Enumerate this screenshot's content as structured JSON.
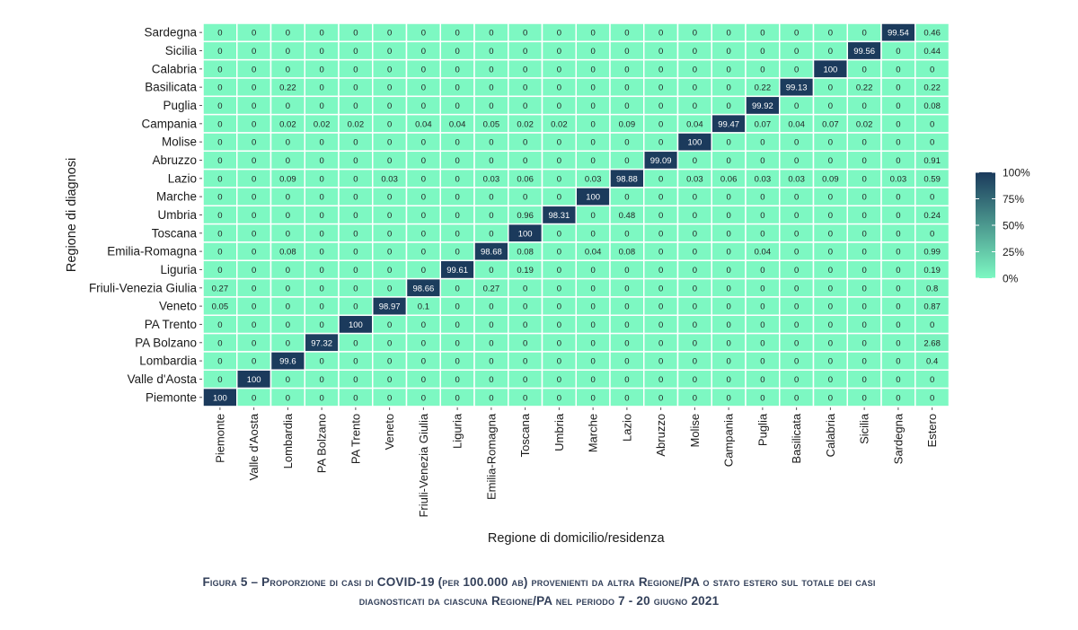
{
  "chart_data": {
    "type": "heatmap",
    "title": "",
    "xlabel": "Regione di domicilio/residenza",
    "ylabel": "Regione di diagnosi",
    "x_categories": [
      "Piemonte",
      "Valle d'Aosta",
      "Lombardia",
      "PA Bolzano",
      "PA Trento",
      "Veneto",
      "Friuli-Venezia Giulia",
      "Liguria",
      "Emilia-Romagna",
      "Toscana",
      "Umbria",
      "Marche",
      "Lazio",
      "Abruzzo",
      "Molise",
      "Campania",
      "Puglia",
      "Basilicata",
      "Calabria",
      "Sicilia",
      "Sardegna",
      "Estero"
    ],
    "y_categories": [
      "Sardegna",
      "Sicilia",
      "Calabria",
      "Basilicata",
      "Puglia",
      "Campania",
      "Molise",
      "Abruzzo",
      "Lazio",
      "Marche",
      "Umbria",
      "Toscana",
      "Emilia-Romagna",
      "Liguria",
      "Friuli-Venezia Giulia",
      "Veneto",
      "PA Trento",
      "PA Bolzano",
      "Lombardia",
      "Valle d'Aosta",
      "Piemonte"
    ],
    "values": [
      [
        "0",
        "0",
        "0",
        "0",
        "0",
        "0",
        "0",
        "0",
        "0",
        "0",
        "0",
        "0",
        "0",
        "0",
        "0",
        "0",
        "0",
        "0",
        "0",
        "0",
        "99.54",
        "0.46"
      ],
      [
        "0",
        "0",
        "0",
        "0",
        "0",
        "0",
        "0",
        "0",
        "0",
        "0",
        "0",
        "0",
        "0",
        "0",
        "0",
        "0",
        "0",
        "0",
        "0",
        "99.56",
        "0",
        "0.44"
      ],
      [
        "0",
        "0",
        "0",
        "0",
        "0",
        "0",
        "0",
        "0",
        "0",
        "0",
        "0",
        "0",
        "0",
        "0",
        "0",
        "0",
        "0",
        "0",
        "100",
        "0",
        "0",
        "0"
      ],
      [
        "0",
        "0",
        "0.22",
        "0",
        "0",
        "0",
        "0",
        "0",
        "0",
        "0",
        "0",
        "0",
        "0",
        "0",
        "0",
        "0",
        "0.22",
        "99.13",
        "0",
        "0.22",
        "0",
        "0.22"
      ],
      [
        "0",
        "0",
        "0",
        "0",
        "0",
        "0",
        "0",
        "0",
        "0",
        "0",
        "0",
        "0",
        "0",
        "0",
        "0",
        "0",
        "99.92",
        "0",
        "0",
        "0",
        "0",
        "0.08"
      ],
      [
        "0",
        "0",
        "0.02",
        "0.02",
        "0.02",
        "0",
        "0.04",
        "0.04",
        "0.05",
        "0.02",
        "0.02",
        "0",
        "0.09",
        "0",
        "0.04",
        "99.47",
        "0.07",
        "0.04",
        "0.07",
        "0.02",
        "0",
        "0"
      ],
      [
        "0",
        "0",
        "0",
        "0",
        "0",
        "0",
        "0",
        "0",
        "0",
        "0",
        "0",
        "0",
        "0",
        "0",
        "100",
        "0",
        "0",
        "0",
        "0",
        "0",
        "0",
        "0"
      ],
      [
        "0",
        "0",
        "0",
        "0",
        "0",
        "0",
        "0",
        "0",
        "0",
        "0",
        "0",
        "0",
        "0",
        "99.09",
        "0",
        "0",
        "0",
        "0",
        "0",
        "0",
        "0",
        "0.91"
      ],
      [
        "0",
        "0",
        "0.09",
        "0",
        "0",
        "0.03",
        "0",
        "0",
        "0.03",
        "0.06",
        "0",
        "0.03",
        "98.88",
        "0",
        "0.03",
        "0.06",
        "0.03",
        "0.03",
        "0.09",
        "0",
        "0.03",
        "0.59"
      ],
      [
        "0",
        "0",
        "0",
        "0",
        "0",
        "0",
        "0",
        "0",
        "0",
        "0",
        "0",
        "100",
        "0",
        "0",
        "0",
        "0",
        "0",
        "0",
        "0",
        "0",
        "0",
        "0"
      ],
      [
        "0",
        "0",
        "0",
        "0",
        "0",
        "0",
        "0",
        "0",
        "0",
        "0.96",
        "98.31",
        "0",
        "0.48",
        "0",
        "0",
        "0",
        "0",
        "0",
        "0",
        "0",
        "0",
        "0.24"
      ],
      [
        "0",
        "0",
        "0",
        "0",
        "0",
        "0",
        "0",
        "0",
        "0",
        "100",
        "0",
        "0",
        "0",
        "0",
        "0",
        "0",
        "0",
        "0",
        "0",
        "0",
        "0",
        "0"
      ],
      [
        "0",
        "0",
        "0.08",
        "0",
        "0",
        "0",
        "0",
        "0",
        "98.68",
        "0.08",
        "0",
        "0.04",
        "0.08",
        "0",
        "0",
        "0",
        "0.04",
        "0",
        "0",
        "0",
        "0",
        "0.99"
      ],
      [
        "0",
        "0",
        "0",
        "0",
        "0",
        "0",
        "0",
        "99.61",
        "0",
        "0.19",
        "0",
        "0",
        "0",
        "0",
        "0",
        "0",
        "0",
        "0",
        "0",
        "0",
        "0",
        "0.19"
      ],
      [
        "0.27",
        "0",
        "0",
        "0",
        "0",
        "0",
        "98.66",
        "0",
        "0.27",
        "0",
        "0",
        "0",
        "0",
        "0",
        "0",
        "0",
        "0",
        "0",
        "0",
        "0",
        "0",
        "0.8"
      ],
      [
        "0.05",
        "0",
        "0",
        "0",
        "0",
        "98.97",
        "0.1",
        "0",
        "0",
        "0",
        "0",
        "0",
        "0",
        "0",
        "0",
        "0",
        "0",
        "0",
        "0",
        "0",
        "0",
        "0.87"
      ],
      [
        "0",
        "0",
        "0",
        "0",
        "100",
        "0",
        "0",
        "0",
        "0",
        "0",
        "0",
        "0",
        "0",
        "0",
        "0",
        "0",
        "0",
        "0",
        "0",
        "0",
        "0",
        "0"
      ],
      [
        "0",
        "0",
        "0",
        "97.32",
        "0",
        "0",
        "0",
        "0",
        "0",
        "0",
        "0",
        "0",
        "0",
        "0",
        "0",
        "0",
        "0",
        "0",
        "0",
        "0",
        "0",
        "2.68"
      ],
      [
        "0",
        "0",
        "99.6",
        "0",
        "0",
        "0",
        "0",
        "0",
        "0",
        "0",
        "0",
        "0",
        "0",
        "0",
        "0",
        "0",
        "0",
        "0",
        "0",
        "0",
        "0",
        "0.4"
      ],
      [
        "0",
        "100",
        "0",
        "0",
        "0",
        "0",
        "0",
        "0",
        "0",
        "0",
        "0",
        "0",
        "0",
        "0",
        "0",
        "0",
        "0",
        "0",
        "0",
        "0",
        "0",
        "0"
      ],
      [
        "100",
        "0",
        "0",
        "0",
        "0",
        "0",
        "0",
        "0",
        "0",
        "0",
        "0",
        "0",
        "0",
        "0",
        "0",
        "0",
        "0",
        "0",
        "0",
        "0",
        "0",
        "0"
      ]
    ],
    "color_scale": {
      "low": "#7df8c2",
      "high": "#1b3a5c",
      "range": [
        0,
        100
      ],
      "legend_ticks": [
        "0%",
        "25%",
        "50%",
        "75%",
        "100%"
      ],
      "legend_position": "right"
    },
    "cell_text_dark": "#222222",
    "cell_text_light": "#ffffff",
    "grid": false
  },
  "caption": {
    "line1": "Figura 5 – Proporzione di casi di COVID-19 (per 100.000 ab) provenienti da altra Regione/PA o stato estero sul totale dei casi",
    "line2": "diagnosticati da ciascuna Regione/PA nel periodo 7 - 20 giugno 2021"
  }
}
